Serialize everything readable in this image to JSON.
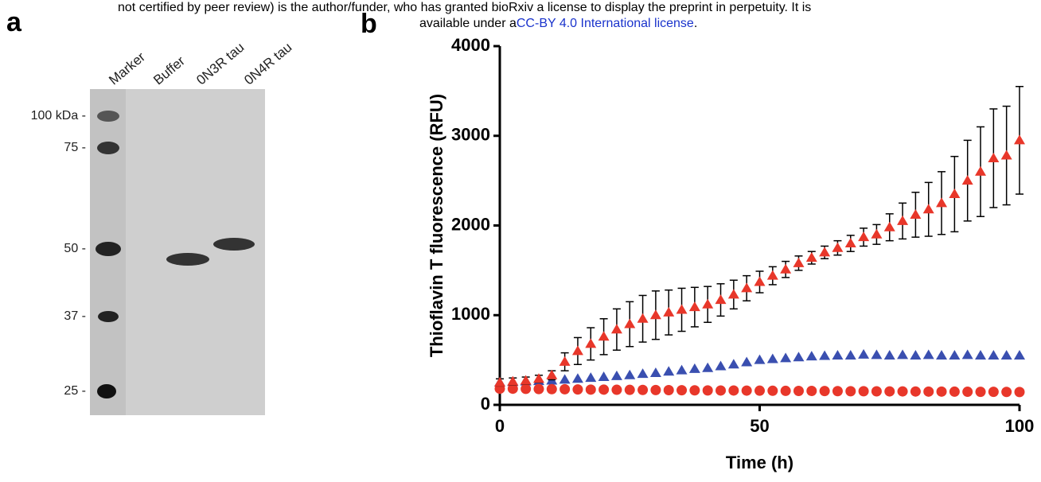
{
  "header": {
    "line1": "not certified by peer review) is the author/funder, who has granted bioRxiv a license to display the preprint in perpetuity. It is",
    "line2_prefix": "available under a",
    "line2_link": "CC-BY 4.0 International license",
    "line2_suffix": "."
  },
  "panel_a": {
    "label": "a",
    "lanes": [
      "Marker",
      "Buffer",
      "0N3R tau",
      "0N4R tau"
    ],
    "markers": [
      "100 kDa -",
      "75 -",
      "50 -",
      "37 -",
      "25 -"
    ]
  },
  "chart_data": {
    "type": "scatter",
    "panel_label": "b",
    "x_label": "Time (h)",
    "y_label": "Thioflavin T fluorescence (RFU)",
    "xlim": [
      0,
      100
    ],
    "ylim": [
      0,
      4000
    ],
    "xticks": [
      0,
      50,
      100
    ],
    "yticks": [
      0,
      1000,
      2000,
      3000,
      4000
    ],
    "x": [
      0,
      2.5,
      5,
      7.5,
      10,
      12.5,
      15,
      17.5,
      20,
      22.5,
      25,
      27.5,
      30,
      32.5,
      35,
      37.5,
      40,
      42.5,
      45,
      47.5,
      50,
      52.5,
      55,
      57.5,
      60,
      62.5,
      65,
      67.5,
      70,
      72.5,
      75,
      77.5,
      80,
      82.5,
      85,
      87.5,
      90,
      92.5,
      95,
      97.5,
      100
    ],
    "series": [
      {
        "color": "#3a4fb0",
        "marker": "triangle",
        "values": [
          250,
          255,
          260,
          265,
          270,
          280,
          290,
          300,
          310,
          320,
          330,
          345,
          355,
          370,
          385,
          400,
          410,
          430,
          450,
          475,
          500,
          510,
          520,
          530,
          540,
          545,
          550,
          550,
          560,
          555,
          550,
          555,
          550,
          555,
          550,
          550,
          555,
          550,
          550,
          550,
          550
        ]
      },
      {
        "color": "#e8372a",
        "marker": "circle",
        "values": [
          180,
          180,
          178,
          176,
          175,
          174,
          172,
          170,
          170,
          168,
          167,
          166,
          165,
          164,
          163,
          162,
          161,
          160,
          160,
          159,
          158,
          157,
          156,
          155,
          155,
          154,
          153,
          152,
          152,
          151,
          150,
          150,
          149,
          148,
          148,
          147,
          146,
          145,
          145,
          144,
          143
        ]
      },
      {
        "color": "#e8372a",
        "marker": "triangle",
        "values": [
          250,
          260,
          270,
          290,
          330,
          480,
          600,
          680,
          760,
          840,
          900,
          960,
          1000,
          1030,
          1060,
          1090,
          1120,
          1170,
          1230,
          1300,
          1370,
          1440,
          1510,
          1580,
          1640,
          1700,
          1750,
          1800,
          1870,
          1900,
          1980,
          2050,
          2120,
          2180,
          2250,
          2350,
          2500,
          2600,
          2750,
          2780,
          2950
        ],
        "errors": [
          40,
          40,
          40,
          40,
          50,
          100,
          150,
          180,
          200,
          230,
          250,
          260,
          270,
          250,
          240,
          220,
          200,
          180,
          160,
          140,
          120,
          100,
          90,
          80,
          70,
          70,
          80,
          90,
          100,
          110,
          150,
          200,
          250,
          300,
          350,
          420,
          450,
          500,
          550,
          550,
          600
        ]
      }
    ]
  }
}
